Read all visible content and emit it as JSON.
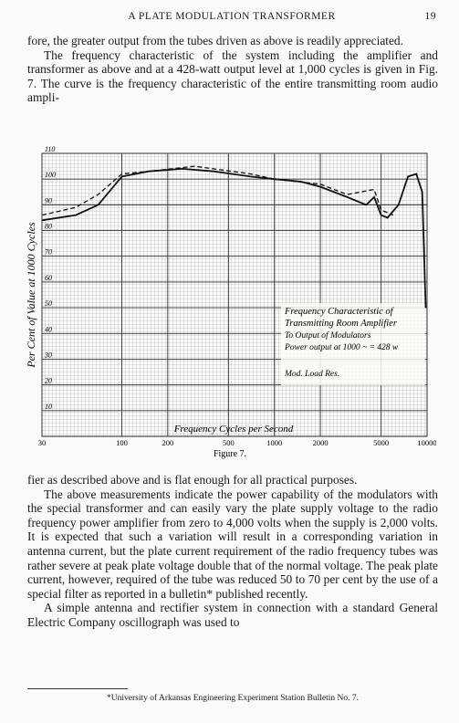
{
  "header": {
    "title": "A PLATE MODULATION TRANSFORMER",
    "page": "19"
  },
  "paragraphs_before": [
    "fore, the greater output from the tubes driven as above is readily appreciated.",
    "The frequency characteristic of the system including the amplifier and transformer as above and at a 428-watt output level at 1,000 cycles is given in Fig. 7. The curve is the frequency characteristic of the entire transmitting room audio ampli-"
  ],
  "chart_data": {
    "type": "line",
    "caption": "Figure 7.",
    "x_label": "Frequency Cycles per Second",
    "y_label": "Per Cent of Value at 1000 Cycles",
    "annotations": [
      "Frequency Characteristic of",
      "Transmitting Room Amplifier",
      "To Output of Modulators",
      "Power output at 1000 ~ = 428 w",
      "Mod. Load Res."
    ],
    "x_log": true,
    "xlim": [
      30,
      10000
    ],
    "xticks": [
      30,
      100,
      200,
      500,
      1000,
      2000,
      5000,
      10000
    ],
    "ylim": [
      0,
      110
    ],
    "yticks": [
      10,
      20,
      30,
      40,
      50,
      60,
      70,
      80,
      90,
      100,
      110
    ],
    "grid": true,
    "series": [
      {
        "color": "#111111",
        "dash": false,
        "x": [
          30,
          50,
          70,
          100,
          150,
          250,
          400,
          700,
          1000,
          1500,
          2000,
          3000,
          4000,
          4500,
          5000,
          5500,
          6500,
          7500,
          8500,
          9300,
          9800
        ],
        "values": [
          84,
          86,
          90,
          101,
          103,
          104,
          103,
          101,
          100,
          99,
          97,
          93,
          90,
          93,
          86,
          85,
          90,
          101,
          102,
          95,
          50
        ]
      },
      {
        "color": "#111111",
        "dash": true,
        "x": [
          30,
          50,
          70,
          100,
          150,
          300,
          700,
          1000,
          2000,
          3000,
          4500,
          5000,
          6000
        ],
        "values": [
          86,
          89,
          94,
          102,
          103,
          105,
          102,
          100,
          98,
          94,
          96,
          88,
          86
        ]
      }
    ]
  },
  "paragraphs_after": [
    "fier as described above and is flat enough for all practical purposes.",
    "The above measurements indicate the power capability of the modulators with the special transformer and can easily vary the plate supply voltage to the radio frequency power amplifier from zero to 4,000 volts when the supply is 2,000 volts. It is expected that such a variation will result in a corresponding variation in antenna current, but the plate current requirement of the radio frequency tubes was rather severe at peak plate voltage double that of the normal voltage. The peak plate current, however, required of the tube was reduced 50 to 70 per cent by the use of a special filter as reported in a bulletin* published recently.",
    "A simple antenna and rectifier system in connection with a standard General Electric Company oscillograph was used to"
  ],
  "footnote": "*University of Arkansas Engineering Experiment Station Bulletin No. 7."
}
